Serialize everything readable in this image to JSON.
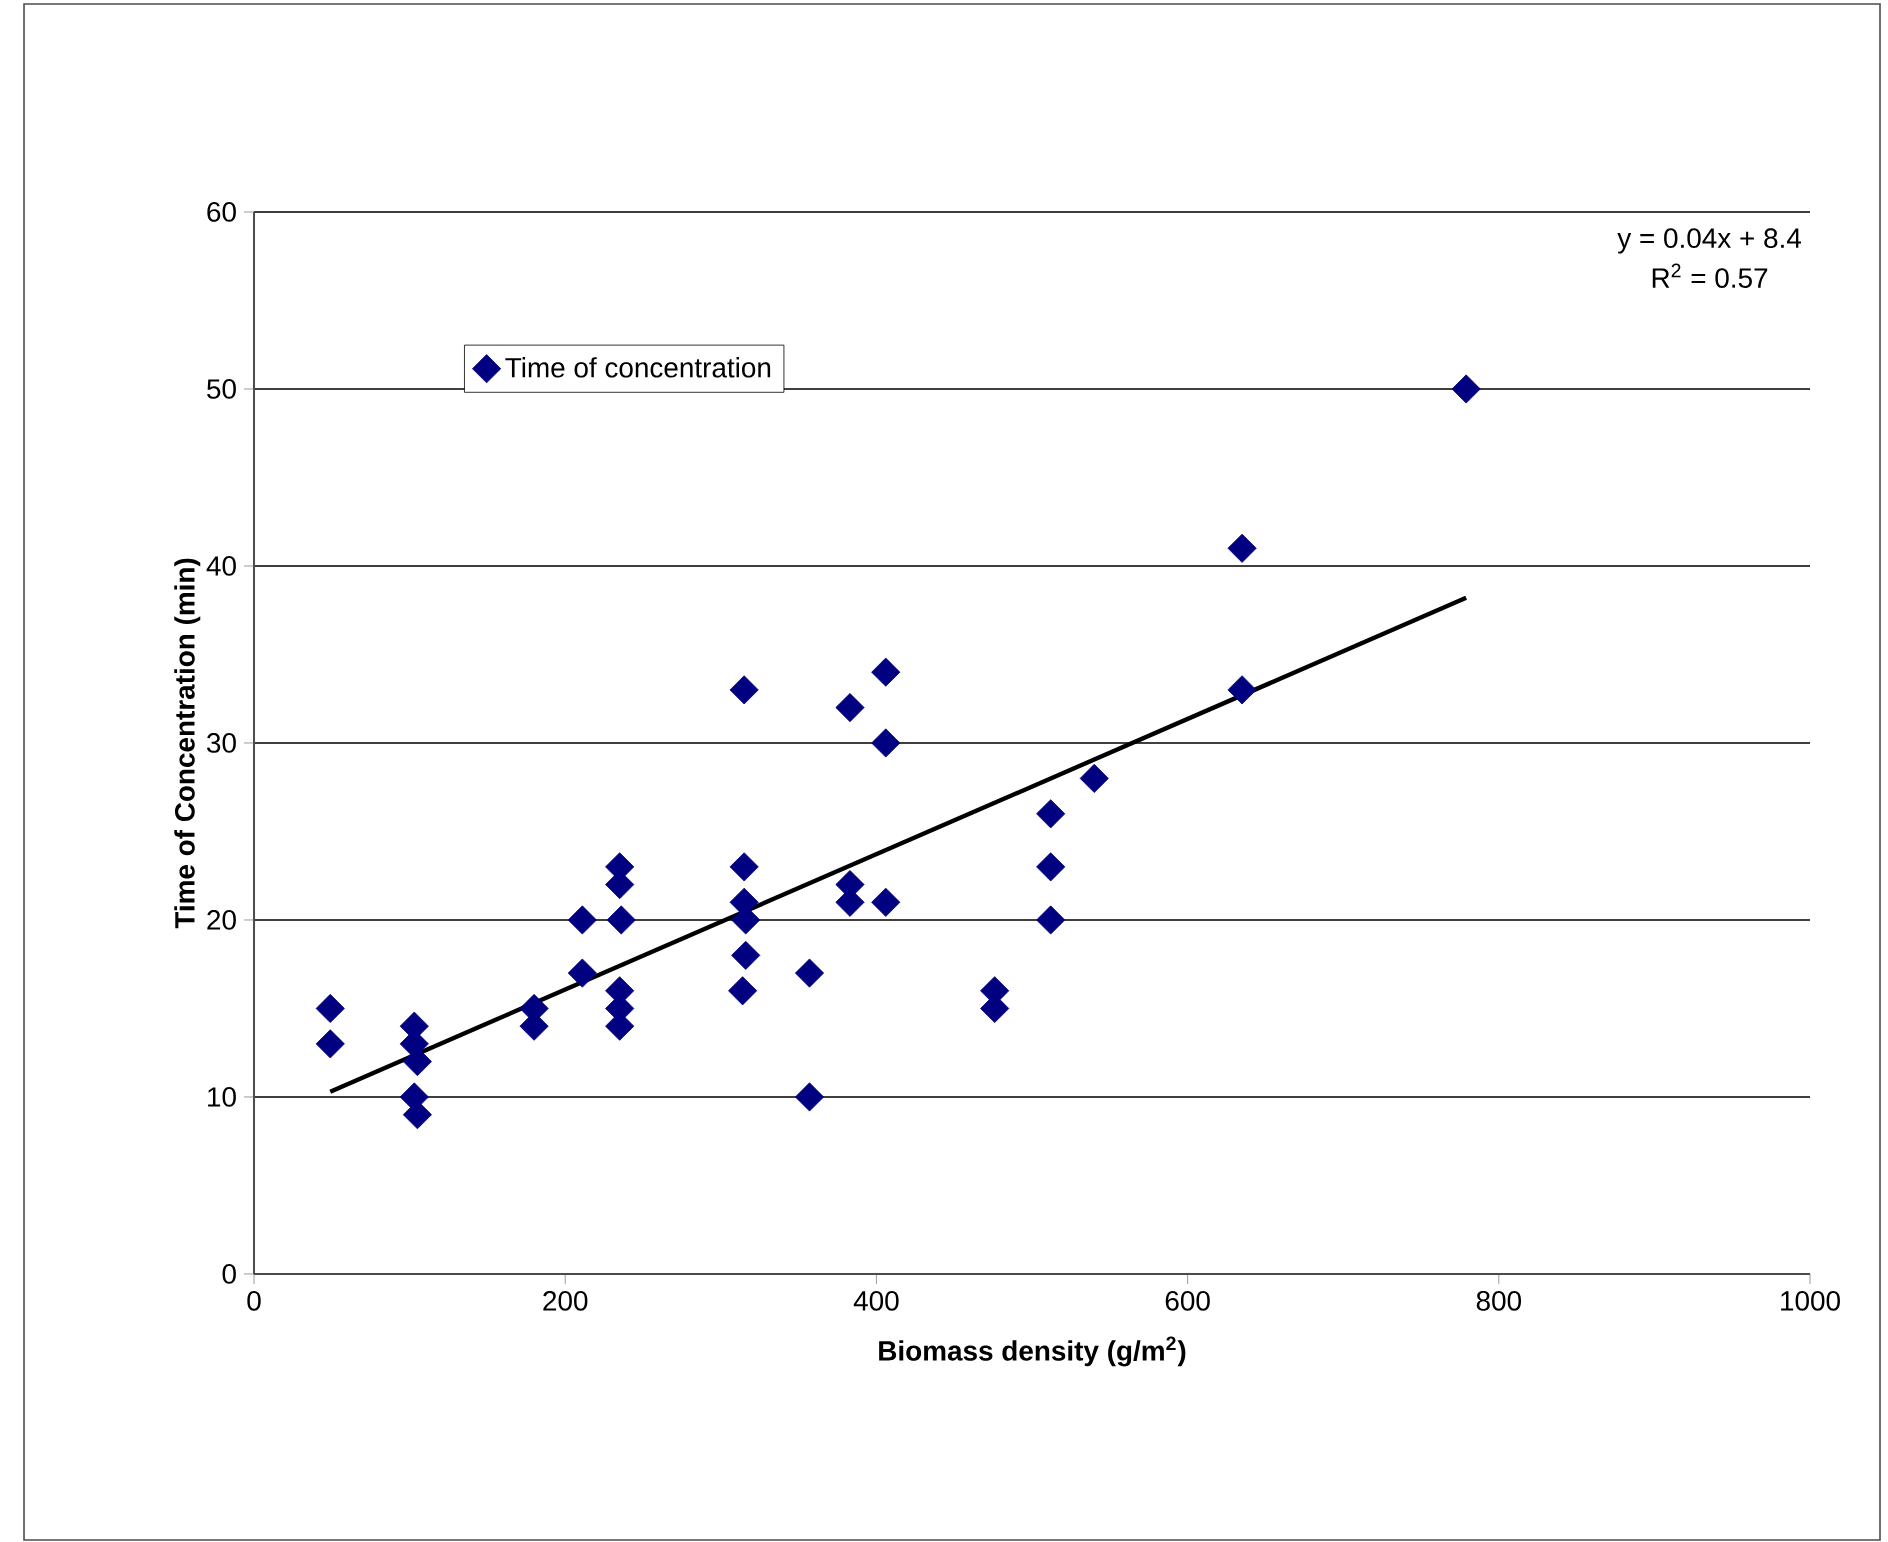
{
  "chart_data": {
    "type": "scatter",
    "xlabel": "Biomass density (g/m$^{2}$)",
    "ylabel": "Time of Concentration (min)",
    "xlim": [
      0,
      1000
    ],
    "xticks": [
      0,
      200,
      400,
      600,
      800,
      1000
    ],
    "ylim": [
      0,
      60
    ],
    "yticks": [
      0,
      10,
      20,
      30,
      40,
      50,
      60
    ],
    "grid": "y",
    "legend": "top left",
    "annotations": [
      "y = 0.04x + 8.4",
      "R$^{2}$ = 0.57"
    ],
    "series": [
      {
        "name": "Time of concentration",
        "color": "#000080",
        "marker": "diamond",
        "x": [
          49,
          49,
          103,
          103,
          105,
          103,
          105,
          180,
          180,
          211,
          211,
          235,
          235,
          236,
          235,
          235,
          235,
          315,
          315,
          315,
          316,
          316,
          314,
          357,
          357,
          383,
          383,
          383,
          406,
          406,
          406,
          476,
          476,
          512,
          512,
          512,
          540,
          635,
          635,
          779
        ],
        "values": [
          15,
          13,
          14,
          13,
          12,
          10,
          9,
          15,
          14,
          20,
          17,
          23,
          22,
          20,
          16,
          15,
          14,
          33,
          23,
          21,
          20,
          18,
          16,
          17,
          10,
          32,
          22,
          21,
          34,
          30,
          21,
          16,
          15,
          26,
          23,
          20,
          28,
          41,
          33,
          50
        ]
      },
      {
        "type": "line",
        "marker": "none",
        "color": "#000000",
        "x": [
          49,
          779
        ],
        "values": [
          10.3,
          38.2
        ]
      }
    ]
  }
}
